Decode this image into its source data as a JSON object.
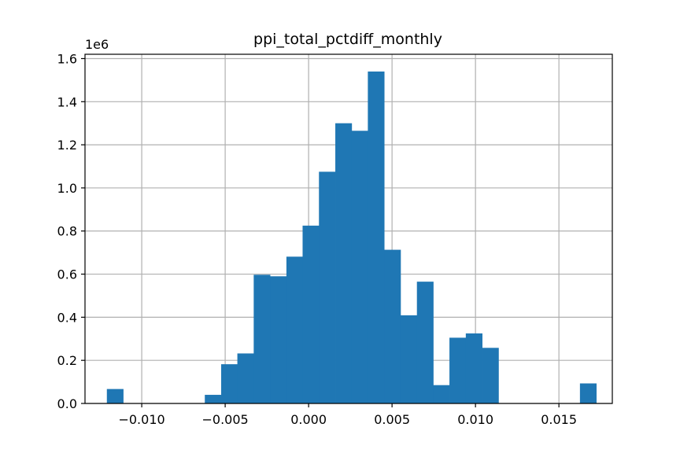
{
  "chart_data": {
    "type": "bar",
    "title": "ppi_total_pctdiff_monthly",
    "xlabel": "",
    "ylabel": "",
    "y_offset_label": "1e6",
    "y_scale": 1000000,
    "xlim": [
      -0.0134,
      0.0182
    ],
    "ylim": [
      0,
      1.62
    ],
    "grid": true,
    "bar_color": "#1f77b4",
    "bin_width": 0.000978,
    "bins": [
      {
        "left": -0.01209,
        "value": 0.067
      },
      {
        "left": -0.01111,
        "value": 0
      },
      {
        "left": -0.01013,
        "value": 0
      },
      {
        "left": -0.00915,
        "value": 0
      },
      {
        "left": -0.00818,
        "value": 0
      },
      {
        "left": -0.0072,
        "value": 0
      },
      {
        "left": -0.00622,
        "value": 0.04
      },
      {
        "left": -0.00524,
        "value": 0.182
      },
      {
        "left": -0.00427,
        "value": 0.232
      },
      {
        "left": -0.00329,
        "value": 0.597
      },
      {
        "left": -0.00231,
        "value": 0.59
      },
      {
        "left": -0.00133,
        "value": 0.681
      },
      {
        "left": -0.00036,
        "value": 0.825
      },
      {
        "left": 0.00062,
        "value": 1.075
      },
      {
        "left": 0.0016,
        "value": 1.3
      },
      {
        "left": 0.00258,
        "value": 1.265
      },
      {
        "left": 0.00355,
        "value": 1.54
      },
      {
        "left": 0.00453,
        "value": 0.713
      },
      {
        "left": 0.00551,
        "value": 0.409
      },
      {
        "left": 0.00649,
        "value": 0.565
      },
      {
        "left": 0.00746,
        "value": 0.085
      },
      {
        "left": 0.00844,
        "value": 0.305
      },
      {
        "left": 0.00942,
        "value": 0.325
      },
      {
        "left": 0.0104,
        "value": 0.258
      },
      {
        "left": 0.01137,
        "value": 0
      },
      {
        "left": 0.01235,
        "value": 0
      },
      {
        "left": 0.01333,
        "value": 0
      },
      {
        "left": 0.01431,
        "value": 0
      },
      {
        "left": 0.01528,
        "value": 0
      },
      {
        "left": 0.01626,
        "value": 0.093
      }
    ],
    "x_ticks": [
      {
        "value": -0.01,
        "label": "−0.010"
      },
      {
        "value": -0.005,
        "label": "−0.005"
      },
      {
        "value": 0.0,
        "label": "0.000"
      },
      {
        "value": 0.005,
        "label": "0.005"
      },
      {
        "value": 0.01,
        "label": "0.010"
      },
      {
        "value": 0.015,
        "label": "0.015"
      }
    ],
    "y_ticks": [
      {
        "value": 0.0,
        "label": "0.0"
      },
      {
        "value": 0.2,
        "label": "0.2"
      },
      {
        "value": 0.4,
        "label": "0.4"
      },
      {
        "value": 0.6,
        "label": "0.6"
      },
      {
        "value": 0.8,
        "label": "0.8"
      },
      {
        "value": 1.0,
        "label": "1.0"
      },
      {
        "value": 1.2,
        "label": "1.2"
      },
      {
        "value": 1.4,
        "label": "1.4"
      },
      {
        "value": 1.6,
        "label": "1.6"
      }
    ]
  }
}
